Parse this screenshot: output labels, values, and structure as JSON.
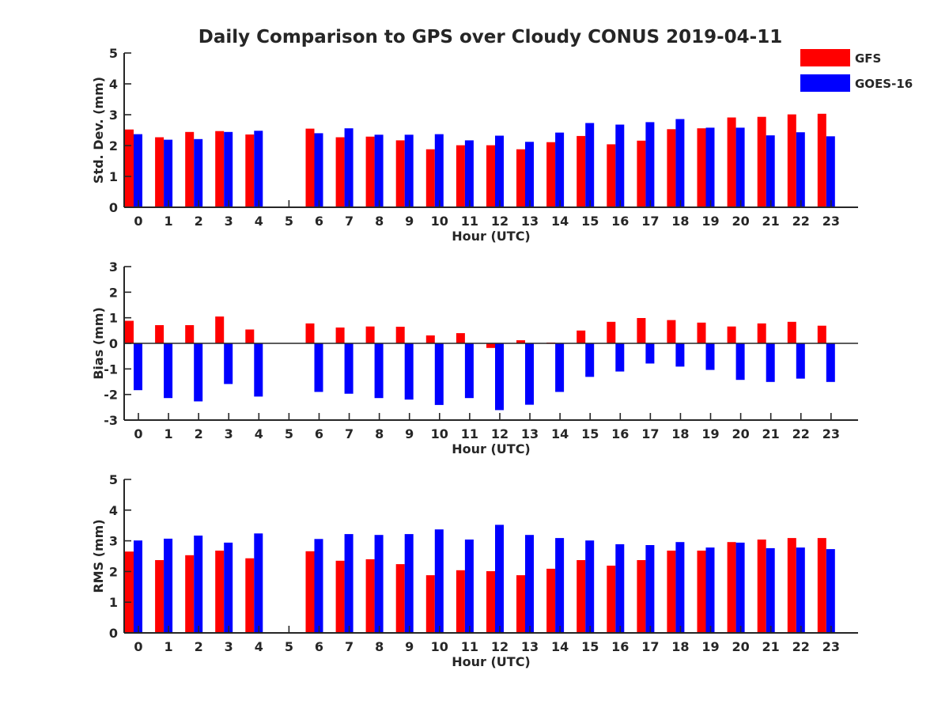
{
  "title": "Daily Comparison to GPS over Cloudy CONUS 2019-04-11",
  "legend": {
    "placement": "top-right",
    "items": [
      {
        "label": "GFS",
        "color": "#ff0000"
      },
      {
        "label": "GOES-16",
        "color": "#0000ff"
      }
    ]
  },
  "chart_data": [
    {
      "type": "bar",
      "title": "Daily Comparison to GPS over Cloudy CONUS 2019-04-11",
      "xlabel": "Hour (UTC)",
      "ylabel": "Std. Dev. (mm)",
      "ylim": [
        0,
        5
      ],
      "yticks": [
        0,
        1,
        2,
        3,
        4,
        5
      ],
      "categories": [
        "0",
        "1",
        "2",
        "3",
        "4",
        "5",
        "6",
        "7",
        "8",
        "9",
        "10",
        "11",
        "12",
        "13",
        "14",
        "15",
        "16",
        "17",
        "18",
        "19",
        "20",
        "21",
        "22",
        "23"
      ],
      "series": [
        {
          "name": "GFS",
          "color": "#ff0000",
          "values": [
            2.52,
            2.27,
            2.44,
            2.47,
            2.36,
            null,
            2.55,
            2.27,
            2.29,
            2.17,
            1.88,
            2.01,
            2.01,
            1.88,
            2.11,
            2.31,
            2.04,
            2.16,
            2.53,
            2.56,
            2.91,
            2.93,
            3.01,
            3.03
          ]
        },
        {
          "name": "GOES-16",
          "color": "#0000ff",
          "values": [
            2.37,
            2.19,
            2.21,
            2.44,
            2.48,
            null,
            2.4,
            2.56,
            2.35,
            2.35,
            2.37,
            2.17,
            2.32,
            2.12,
            2.42,
            2.73,
            2.68,
            2.76,
            2.86,
            2.58,
            2.58,
            2.33,
            2.43,
            2.3
          ]
        }
      ],
      "grid": false
    },
    {
      "type": "bar",
      "xlabel": "Hour (UTC)",
      "ylabel": "Bias (mm)",
      "ylim": [
        -3,
        3
      ],
      "yticks": [
        -3,
        -2,
        -1,
        0,
        1,
        2,
        3
      ],
      "categories": [
        "0",
        "1",
        "2",
        "3",
        "4",
        "5",
        "6",
        "7",
        "8",
        "9",
        "10",
        "11",
        "12",
        "13",
        "14",
        "15",
        "16",
        "17",
        "18",
        "19",
        "20",
        "21",
        "22",
        "23"
      ],
      "series": [
        {
          "name": "GFS",
          "color": "#ff0000",
          "values": [
            0.88,
            0.71,
            0.71,
            1.05,
            0.54,
            null,
            0.78,
            0.62,
            0.66,
            0.65,
            0.31,
            0.4,
            -0.18,
            0.12,
            0.03,
            0.5,
            0.84,
            0.99,
            0.91,
            0.81,
            0.66,
            0.78,
            0.84,
            0.69
          ]
        },
        {
          "name": "GOES-16",
          "color": "#0000ff",
          "values": [
            -1.83,
            -2.14,
            -2.27,
            -1.59,
            -2.08,
            null,
            -1.9,
            -1.97,
            -2.14,
            -2.2,
            -2.41,
            -2.14,
            -2.61,
            -2.4,
            -1.9,
            -1.31,
            -1.1,
            -0.79,
            -0.91,
            -1.04,
            -1.43,
            -1.51,
            -1.38,
            -1.51
          ]
        }
      ],
      "grid": false
    },
    {
      "type": "bar",
      "xlabel": "Hour (UTC)",
      "ylabel": "RMS (mm)",
      "ylim": [
        0,
        5
      ],
      "yticks": [
        0,
        1,
        2,
        3,
        4,
        5
      ],
      "categories": [
        "0",
        "1",
        "2",
        "3",
        "4",
        "5",
        "6",
        "7",
        "8",
        "9",
        "10",
        "11",
        "12",
        "13",
        "14",
        "15",
        "16",
        "17",
        "18",
        "19",
        "20",
        "21",
        "22",
        "23"
      ],
      "series": [
        {
          "name": "GFS",
          "color": "#ff0000",
          "values": [
            2.65,
            2.37,
            2.53,
            2.68,
            2.43,
            null,
            2.66,
            2.35,
            2.4,
            2.24,
            1.88,
            2.04,
            2.01,
            1.88,
            2.09,
            2.37,
            2.19,
            2.37,
            2.68,
            2.68,
            2.96,
            3.04,
            3.09,
            3.09
          ]
        },
        {
          "name": "GOES-16",
          "color": "#0000ff",
          "values": [
            3.01,
            3.07,
            3.17,
            2.94,
            3.24,
            null,
            3.06,
            3.22,
            3.19,
            3.22,
            3.37,
            3.04,
            3.52,
            3.19,
            3.09,
            3.01,
            2.89,
            2.86,
            2.96,
            2.78,
            2.94,
            2.76,
            2.78,
            2.73
          ]
        }
      ],
      "grid": false
    }
  ]
}
